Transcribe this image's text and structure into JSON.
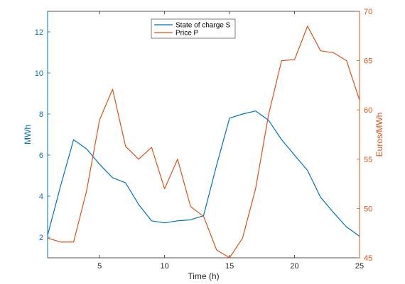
{
  "chart_data": {
    "type": "line",
    "x": [
      1,
      2,
      3,
      4,
      5,
      6,
      7,
      8,
      9,
      10,
      11,
      12,
      13,
      14,
      15,
      16,
      17,
      18,
      19,
      20,
      21,
      22,
      23,
      24,
      25
    ],
    "xlabel": "Time (h)",
    "xlim": [
      1,
      25
    ],
    "xticks": [
      5,
      10,
      15,
      20,
      25
    ],
    "left_axis": {
      "label": "MWh",
      "ylim": [
        1,
        13
      ],
      "ticks": [
        2,
        4,
        6,
        8,
        10,
        12
      ],
      "color": "#0072BD"
    },
    "right_axis": {
      "label": "Euros/MWh",
      "ylim": [
        45,
        70
      ],
      "ticks": [
        45,
        50,
        55,
        60,
        65,
        70
      ],
      "color": "#D95319"
    },
    "series": [
      {
        "name": "State of charge S",
        "axis": "left",
        "color": "#0072BD",
        "values": [
          2.1,
          4.5,
          6.75,
          6.3,
          5.55,
          4.9,
          4.65,
          3.6,
          2.8,
          2.7,
          2.8,
          2.85,
          3.05,
          5.5,
          7.8,
          8.0,
          8.15,
          7.7,
          6.75,
          6.0,
          5.25,
          3.95,
          3.2,
          2.5,
          2.05
        ]
      },
      {
        "name": "Price P",
        "axis": "right",
        "color": "#D95319",
        "values": [
          47.0,
          46.6,
          46.6,
          51.8,
          59.0,
          62.1,
          56.3,
          55.0,
          56.2,
          52.0,
          55.0,
          50.2,
          49.2,
          45.8,
          45.0,
          47.0,
          52.0,
          59.5,
          65.0,
          65.1,
          68.5,
          66.0,
          65.8,
          65.0,
          61.0
        ]
      }
    ],
    "legend": {
      "position": "top-center",
      "entries": [
        "State of charge S",
        "Price P"
      ]
    },
    "grid": false
  }
}
